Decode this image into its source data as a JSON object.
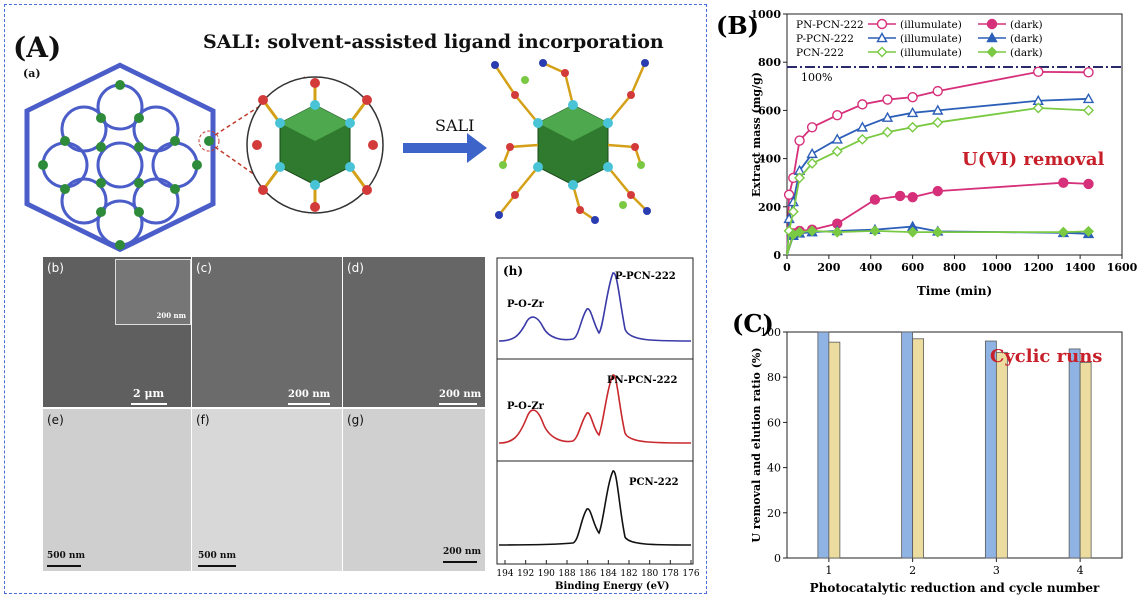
{
  "panelA": {
    "label": "(A)",
    "title": "SALI: solvent-assisted  ligand incorporation",
    "sub_a": "(a)",
    "arrow_label": "SALI",
    "images": [
      {
        "tag": "(b)",
        "scale": "2 μm",
        "inset_scale": "200 nm"
      },
      {
        "tag": "(c)",
        "scale": "200 nm"
      },
      {
        "tag": "(d)",
        "scale": "200 nm"
      },
      {
        "tag": "(e)",
        "scale": "500 nm"
      },
      {
        "tag": "(f)",
        "scale": "500 nm"
      },
      {
        "tag": "(g)",
        "scale": "200 nm"
      }
    ]
  },
  "xps": {
    "tag": "(h)",
    "traces": [
      {
        "name": "P-PCN-222",
        "annotation": "P-O-Zr",
        "color": "#3a3aa8"
      },
      {
        "name": "PN-PCN-222",
        "annotation": "P-O-Zr",
        "color": "#c8282d"
      },
      {
        "name": "PCN-222",
        "annotation": "",
        "color": "#111111"
      }
    ],
    "xticks": [
      "194",
      "192",
      "190",
      "188",
      "186",
      "184",
      "182",
      "180",
      "178",
      "176"
    ],
    "xlabel": "Binding Energy (eV)"
  },
  "chart_data": [
    {
      "type": "line",
      "panel": "(B)",
      "xlabel": "Time (min)",
      "ylabel": "Extract mass (mg/g)",
      "xlim": [
        0,
        1600
      ],
      "ylim": [
        0,
        1000
      ],
      "xticks": [
        0,
        200,
        400,
        600,
        800,
        1000,
        1200,
        1400,
        1600
      ],
      "yticks": [
        0,
        200,
        400,
        600,
        800,
        1000
      ],
      "annotation": "U(VI) removal",
      "reference_line": {
        "y": 780,
        "label": "100%"
      },
      "legend_rows": [
        {
          "name": "PN-PCN-222",
          "illum": "(illumulate)",
          "dark": "(dark)"
        },
        {
          "name": "P-PCN-222",
          "illum": "(illumulate)",
          "dark": "(dark)"
        },
        {
          "name": "PCN-222",
          "illum": "(illumulate)",
          "dark": "(dark)"
        }
      ],
      "series": [
        {
          "name": "PN-PCN-222 (illumulate)",
          "color": "#d6307a",
          "marker": "half-circle",
          "x": [
            0,
            10,
            30,
            60,
            120,
            240,
            360,
            480,
            600,
            720,
            1200,
            1440
          ],
          "y": [
            0,
            250,
            320,
            475,
            530,
            580,
            625,
            645,
            655,
            680,
            760,
            758
          ]
        },
        {
          "name": "PN-PCN-222 (dark)",
          "color": "#d6307a",
          "marker": "circle",
          "x": [
            0,
            30,
            60,
            120,
            240,
            420,
            540,
            600,
            720,
            1320,
            1440
          ],
          "y": [
            0,
            90,
            100,
            105,
            130,
            230,
            245,
            240,
            265,
            300,
            295
          ]
        },
        {
          "name": "P-PCN-222 (illumulate)",
          "color": "#2c5fb8",
          "marker": "half-triangle",
          "x": [
            0,
            10,
            30,
            60,
            120,
            240,
            360,
            480,
            600,
            720,
            1200,
            1440
          ],
          "y": [
            0,
            150,
            220,
            350,
            420,
            480,
            530,
            570,
            590,
            600,
            640,
            648
          ]
        },
        {
          "name": "P-PCN-222 (dark)",
          "color": "#2c5fb8",
          "marker": "triangle",
          "x": [
            0,
            30,
            60,
            120,
            240,
            420,
            600,
            720,
            1320,
            1440
          ],
          "y": [
            0,
            80,
            90,
            95,
            100,
            105,
            118,
            98,
            92,
            88
          ]
        },
        {
          "name": "PCN-222 (illumulate)",
          "color": "#7ac943",
          "marker": "half-diamond",
          "x": [
            0,
            10,
            30,
            60,
            120,
            240,
            360,
            480,
            600,
            720,
            1200,
            1440
          ],
          "y": [
            0,
            100,
            180,
            320,
            380,
            430,
            480,
            510,
            530,
            550,
            610,
            600
          ]
        },
        {
          "name": "PCN-222 (dark)",
          "color": "#7ac943",
          "marker": "diamond",
          "x": [
            0,
            30,
            60,
            120,
            240,
            420,
            600,
            720,
            1320,
            1440
          ],
          "y": [
            0,
            85,
            95,
            100,
            95,
            100,
            95,
            95,
            95,
            98
          ]
        }
      ]
    },
    {
      "type": "bar",
      "panel": "(C)",
      "annotation": "Cyclic runs",
      "xlabel": "Photocatalytic reduction and cycle number",
      "ylabel": "U removal and elution ratio (%)",
      "ylim": [
        0,
        100
      ],
      "yticks": [
        0,
        20,
        40,
        60,
        80,
        100
      ],
      "categories": [
        "1",
        "2",
        "3",
        "4"
      ],
      "series": [
        {
          "color": "#8fb3e3",
          "values": [
            100,
            100,
            96,
            92.5
          ]
        },
        {
          "color": "#ecdca0",
          "values": [
            95.5,
            97,
            91,
            86.5
          ]
        }
      ]
    }
  ]
}
